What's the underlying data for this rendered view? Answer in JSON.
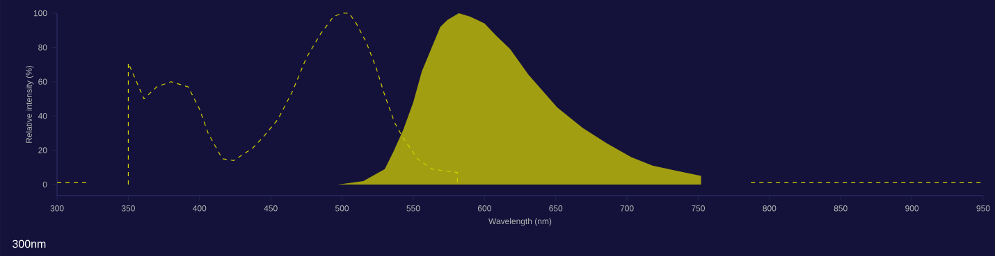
{
  "chart_data": {
    "type": "area",
    "xlabel": "Wavelength (nm)",
    "ylabel": "Relative intensity (%)",
    "annotations": [
      "300nm"
    ],
    "xlim": [
      300,
      950
    ],
    "ylim": [
      -6.5,
      100
    ],
    "xticks": [
      300,
      350,
      400,
      450,
      500,
      550,
      600,
      650,
      700,
      750,
      800,
      850,
      900,
      950
    ],
    "yticks": [
      0,
      20,
      40,
      60,
      80,
      100
    ],
    "grid": false,
    "series": [
      {
        "type": "line",
        "line_style": "dashed",
        "color": "#d4d000",
        "x": [
          300,
          323,
          336,
          350,
          350,
          361,
          370,
          380,
          392,
          400,
          406,
          416,
          424,
          437,
          445,
          455,
          465,
          475,
          485,
          494,
          500,
          505,
          510,
          517,
          524,
          530,
          537,
          543,
          553,
          563,
          572,
          581,
          581,
          684,
          787,
          950
        ],
        "values": [
          1,
          1,
          null,
          0,
          71,
          50,
          57,
          60,
          57,
          44,
          30,
          15,
          14,
          21,
          28,
          38,
          54,
          74,
          88,
          98,
          100,
          100,
          94,
          83,
          68,
          52,
          36,
          27,
          15,
          9,
          8,
          7,
          0,
          null,
          1,
          1
        ]
      },
      {
        "color": "#a19e12",
        "x": [
          497,
          515,
          530,
          536,
          543,
          550,
          556,
          562,
          569,
          574,
          582,
          590,
          600,
          608,
          618,
          631,
          651,
          669,
          686,
          703,
          718,
          735,
          752
        ],
        "values": [
          0,
          2,
          9,
          19,
          32,
          48,
          66,
          78,
          92,
          96,
          100,
          98,
          94,
          87,
          79,
          64,
          45,
          33,
          24,
          16,
          11,
          8,
          5
        ]
      }
    ]
  }
}
